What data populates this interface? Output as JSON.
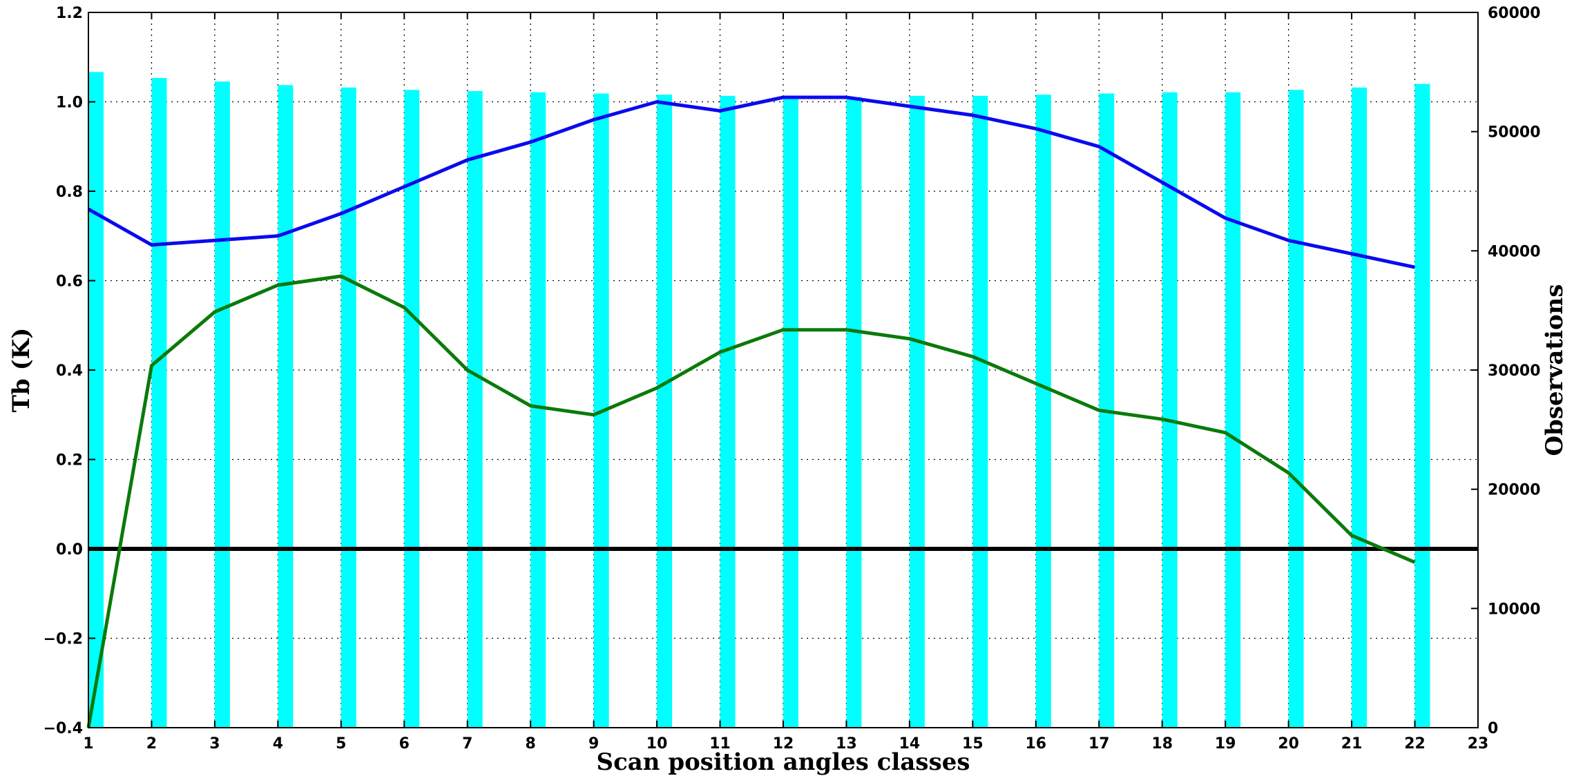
{
  "chart_data": {
    "type": "bar+line",
    "xlabel": "Scan position angles classes",
    "ylabel_left": "Tb (K)",
    "ylabel_right": "Observations",
    "xlim": [
      1,
      23
    ],
    "ylim_left": [
      -0.4,
      1.2
    ],
    "ylim_right": [
      0,
      60000
    ],
    "x_ticks": [
      "1",
      "2",
      "3",
      "4",
      "5",
      "6",
      "7",
      "8",
      "9",
      "10",
      "11",
      "12",
      "13",
      "14",
      "15",
      "16",
      "17",
      "18",
      "19",
      "20",
      "21",
      "22",
      "23"
    ],
    "y_left_ticks": [
      "−0.4",
      "−0.2",
      "0.0",
      "0.2",
      "0.4",
      "0.6",
      "0.8",
      "1.0",
      "1.2"
    ],
    "y_right_ticks": [
      "0",
      "10000",
      "20000",
      "30000",
      "40000",
      "50000",
      "60000"
    ],
    "grid": true,
    "zero_line": true,
    "bars": {
      "axis": "right",
      "color": "#00ffff",
      "x": [
        1,
        2,
        3,
        4,
        5,
        6,
        7,
        8,
        9,
        10,
        11,
        12,
        13,
        14,
        15,
        16,
        17,
        18,
        19,
        20,
        21,
        22
      ],
      "values": [
        55000,
        54500,
        54200,
        53900,
        53700,
        53500,
        53400,
        53300,
        53200,
        53100,
        53000,
        52900,
        52900,
        53000,
        53000,
        53100,
        53200,
        53300,
        53300,
        53500,
        53700,
        54000
      ]
    },
    "series": [
      {
        "axis": "left",
        "color": "#0a0aee",
        "x": [
          1,
          2,
          3,
          4,
          5,
          6,
          7,
          8,
          9,
          10,
          11,
          12,
          13,
          14,
          15,
          16,
          17,
          18,
          19,
          20,
          21,
          22
        ],
        "values": [
          0.76,
          0.68,
          0.69,
          0.7,
          0.75,
          0.81,
          0.87,
          0.91,
          0.96,
          1.0,
          0.98,
          1.01,
          1.01,
          0.99,
          0.97,
          0.94,
          0.9,
          0.82,
          0.74,
          0.69,
          0.66,
          0.63
        ]
      },
      {
        "axis": "left",
        "color": "#0a7a0a",
        "x": [
          1,
          2,
          3,
          4,
          5,
          6,
          7,
          8,
          9,
          10,
          11,
          12,
          13,
          14,
          15,
          16,
          17,
          18,
          19,
          20,
          21,
          22
        ],
        "values": [
          -0.4,
          0.41,
          0.53,
          0.59,
          0.61,
          0.54,
          0.4,
          0.32,
          0.3,
          0.36,
          0.44,
          0.49,
          0.49,
          0.47,
          0.43,
          0.37,
          0.31,
          0.29,
          0.26,
          0.17,
          0.03,
          -0.03
        ]
      }
    ]
  }
}
